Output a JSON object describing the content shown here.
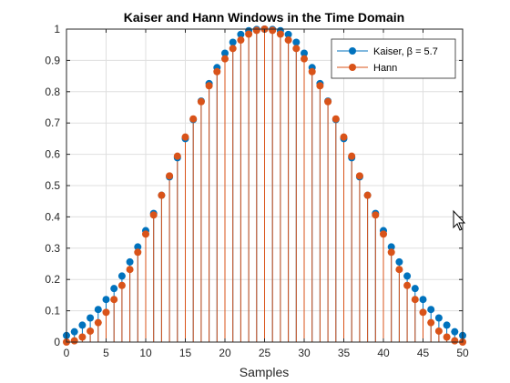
{
  "chart_data": {
    "type": "stem",
    "title": "Kaiser and Hann Windows in the Time Domain",
    "xlabel": "Samples",
    "ylabel": "",
    "xlim": [
      0,
      50
    ],
    "ylim": [
      0,
      1
    ],
    "xticks": [
      "0",
      "5",
      "10",
      "15",
      "20",
      "25",
      "30",
      "35",
      "40",
      "45",
      "50"
    ],
    "yticks": [
      "0",
      "0.1",
      "0.2",
      "0.3",
      "0.4",
      "0.5",
      "0.6",
      "0.7",
      "0.8",
      "0.9",
      "1"
    ],
    "grid": true,
    "legend_position": "top-right",
    "x": [
      0,
      1,
      2,
      3,
      4,
      5,
      6,
      7,
      8,
      9,
      10,
      11,
      12,
      13,
      14,
      15,
      16,
      17,
      18,
      19,
      20,
      21,
      22,
      23,
      24,
      25,
      26,
      27,
      28,
      29,
      30,
      31,
      32,
      33,
      34,
      35,
      36,
      37,
      38,
      39,
      40,
      41,
      42,
      43,
      44,
      45,
      46,
      47,
      48,
      49,
      50
    ],
    "series": [
      {
        "name": "Kaiser, β = 5.7",
        "color": "#0072BD",
        "values": [
          0.021,
          0.033,
          0.054,
          0.077,
          0.104,
          0.136,
          0.171,
          0.211,
          0.256,
          0.304,
          0.356,
          0.411,
          0.469,
          0.528,
          0.589,
          0.65,
          0.711,
          0.77,
          0.826,
          0.877,
          0.923,
          0.958,
          0.983,
          0.995,
          0.999,
          1.0,
          0.999,
          0.995,
          0.983,
          0.958,
          0.923,
          0.877,
          0.826,
          0.77,
          0.711,
          0.65,
          0.589,
          0.528,
          0.469,
          0.411,
          0.356,
          0.304,
          0.256,
          0.211,
          0.171,
          0.136,
          0.104,
          0.077,
          0.054,
          0.033,
          0.021
        ]
      },
      {
        "name": "Hann",
        "color": "#D95319",
        "values": [
          0.0,
          0.004,
          0.016,
          0.035,
          0.062,
          0.095,
          0.136,
          0.181,
          0.232,
          0.287,
          0.345,
          0.406,
          0.469,
          0.531,
          0.594,
          0.655,
          0.713,
          0.768,
          0.819,
          0.864,
          0.905,
          0.938,
          0.965,
          0.984,
          0.996,
          1.0,
          0.996,
          0.984,
          0.965,
          0.938,
          0.905,
          0.864,
          0.819,
          0.768,
          0.713,
          0.655,
          0.594,
          0.531,
          0.469,
          0.406,
          0.345,
          0.287,
          0.232,
          0.181,
          0.136,
          0.095,
          0.062,
          0.035,
          0.016,
          0.004,
          0.0
        ]
      }
    ]
  }
}
